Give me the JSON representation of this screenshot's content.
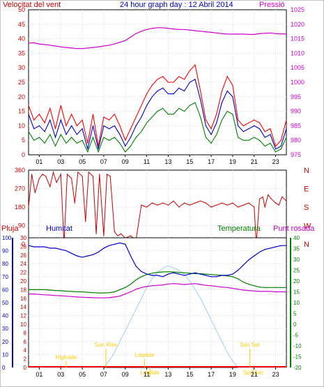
{
  "header": {
    "title": "24 hour graph day : 12 Abril 2014",
    "left_label": "Velocitat del vent",
    "right_label": "Pressió"
  },
  "colors": {
    "wind_gust": "#ff0000",
    "wind_avg": "#0000cc",
    "wind_low": "#008000",
    "pressure": "#cc00cc",
    "direction": "#cc0000",
    "humidity": "#0000cc",
    "temperature": "#008000",
    "dewpoint": "#cc00cc",
    "solar": "#99ccff",
    "rain": "#ff0000",
    "events": "#ffcc00"
  },
  "chart_data": [
    {
      "type": "line",
      "title": "24 hour graph day : 12 Abril 2014",
      "ylabel": "Velocitat del vent",
      "y2label": "Pressió",
      "xlim": [
        0,
        24
      ],
      "ylim": [
        0,
        50
      ],
      "y2lim": [
        975,
        1025
      ],
      "x_ticks": [
        "01",
        "03",
        "05",
        "07",
        "09",
        "11",
        "13",
        "15",
        "17",
        "19",
        "21",
        "23"
      ],
      "y_ticks": [
        0,
        5,
        10,
        15,
        20,
        25,
        30,
        35,
        40,
        45,
        50
      ],
      "y2_ticks": [
        975,
        980,
        985,
        990,
        995,
        1000,
        1005,
        1010,
        1015,
        1020,
        1025
      ],
      "grid": true,
      "x": [
        0,
        0.5,
        1,
        1.5,
        2,
        2.5,
        3,
        3.5,
        4,
        4.5,
        5,
        5.5,
        6,
        6.5,
        7,
        7.5,
        8,
        8.5,
        9,
        9.5,
        10,
        10.5,
        11,
        11.5,
        12,
        12.5,
        13,
        13.5,
        14,
        14.5,
        15,
        15.5,
        16,
        16.5,
        17,
        17.5,
        18,
        18.5,
        19,
        19.5,
        20,
        20.5,
        21,
        21.5,
        22,
        22.5,
        23,
        23.5,
        24
      ],
      "series": [
        {
          "key": "gust",
          "values": [
            17,
            12,
            14,
            11,
            16,
            9,
            17,
            10,
            14,
            10,
            12,
            4,
            14,
            3,
            13,
            12,
            14,
            10,
            5,
            9,
            13,
            17,
            21,
            24,
            26,
            27,
            25,
            25,
            27,
            26,
            29,
            31,
            22,
            12,
            9,
            14,
            22,
            27,
            24,
            12,
            10,
            11,
            12,
            11,
            8,
            9,
            3,
            5,
            12
          ]
        },
        {
          "key": "avg",
          "values": [
            14,
            9,
            10,
            8,
            12,
            6,
            12,
            7,
            10,
            7,
            9,
            2,
            10,
            2,
            10,
            9,
            10,
            7,
            3,
            6,
            10,
            13,
            17,
            20,
            22,
            23,
            21,
            21,
            23,
            22,
            25,
            26,
            19,
            10,
            7,
            11,
            18,
            22,
            20,
            10,
            8,
            9,
            10,
            9,
            6,
            7,
            2,
            3,
            9
          ]
        },
        {
          "key": "low",
          "values": [
            8,
            5,
            6,
            4,
            7,
            3,
            7,
            4,
            6,
            4,
            5,
            1,
            6,
            1,
            6,
            5,
            6,
            4,
            1,
            3,
            6,
            8,
            11,
            13,
            15,
            16,
            14,
            14,
            16,
            15,
            17,
            18,
            13,
            6,
            4,
            7,
            12,
            15,
            14,
            6,
            5,
            5,
            6,
            5,
            3,
            4,
            1,
            2,
            6
          ]
        },
        {
          "key": "pressure",
          "values": [
            1013.5,
            1013.6,
            1013.2,
            1013.0,
            1012.8,
            1012.5,
            1012.2,
            1012.0,
            1011.8,
            1011.6,
            1011.6,
            1011.8,
            1012.0,
            1012.2,
            1012.5,
            1012.8,
            1013.2,
            1013.8,
            1014.4,
            1015.6,
            1016.8,
            1017.6,
            1018.2,
            1018.6,
            1018.8,
            1018.8,
            1018.6,
            1018.4,
            1018.2,
            1018.2,
            1018.0,
            1017.8,
            1017.6,
            1017.4,
            1017.2,
            1017.0,
            1016.8,
            1016.6,
            1016.6,
            1016.6,
            1016.6,
            1016.5,
            1016.5,
            1016.8,
            1016.9,
            1017.0,
            1016.8,
            1016.7,
            1016.6
          ]
        }
      ]
    },
    {
      "type": "line",
      "ylim": [
        0,
        360
      ],
      "y_ticks": [
        0,
        90,
        180,
        270,
        360
      ],
      "y_tick_labels": [
        "0",
        "90",
        "180",
        "270",
        "360"
      ],
      "right_labels": [
        "N",
        "W",
        "S",
        "E",
        "N"
      ],
      "xlim": [
        0,
        24
      ],
      "x_ticks": [
        "01",
        "03",
        "05",
        "07",
        "09",
        "11",
        "13",
        "15",
        "17",
        "19",
        "21",
        "23"
      ],
      "x": [
        0,
        0.3,
        0.6,
        1,
        1.3,
        1.6,
        2,
        2.3,
        2.6,
        3,
        3.3,
        3.6,
        4,
        4.3,
        4.6,
        5,
        5.3,
        5.6,
        6,
        6.3,
        6.6,
        7,
        7.3,
        7.6,
        8,
        8.3,
        8.6,
        9,
        9.5,
        10,
        10.5,
        11,
        11.5,
        12,
        12.5,
        13,
        13.5,
        14,
        14.5,
        15,
        15.5,
        16,
        16.5,
        17,
        17.5,
        18,
        18.5,
        19,
        19.5,
        20,
        20.5,
        21,
        21.2,
        21.5,
        21.8,
        22,
        22.3,
        22.6,
        23,
        23.3,
        23.6,
        24
      ],
      "series": [
        {
          "key": "direction",
          "values": [
            180,
            340,
            250,
            320,
            340,
            330,
            280,
            350,
            300,
            340,
            0,
            340,
            320,
            200,
            350,
            330,
            110,
            350,
            330,
            50,
            340,
            40,
            340,
            330,
            60,
            40,
            50,
            30,
            40,
            20,
            190,
            180,
            200,
            190,
            200,
            190,
            210,
            180,
            200,
            190,
            200,
            210,
            200,
            180,
            190,
            200,
            190,
            200,
            180,
            190,
            200,
            180,
            0,
            220,
            230,
            180,
            240,
            220,
            200,
            190,
            230,
            210
          ]
        }
      ]
    },
    {
      "type": "line",
      "ylabel": "Humitat",
      "y_left_outer_label": "Pluja",
      "y2label": "Temperatura",
      "y2_outer_label": "Punt rosada",
      "xlim": [
        0,
        24
      ],
      "x_ticks": [
        "01",
        "03",
        "05",
        "07",
        "09",
        "11",
        "13",
        "15",
        "17",
        "19",
        "21",
        "23"
      ],
      "humidity_ticks": [
        0,
        10,
        20,
        30,
        40,
        50,
        60,
        70,
        80,
        90,
        100
      ],
      "rain_ticks": [
        0,
        2,
        4,
        6,
        8,
        10,
        12,
        14,
        16,
        18,
        20,
        22,
        24,
        26,
        28,
        30
      ],
      "temp_ticks": [
        -20,
        -15,
        -10,
        -5,
        0,
        5,
        10,
        15,
        20,
        25,
        30,
        35,
        40
      ],
      "grid": true,
      "x": [
        0,
        0.5,
        1,
        1.5,
        2,
        2.5,
        3,
        3.5,
        4,
        4.5,
        5,
        5.5,
        6,
        6.5,
        7,
        7.5,
        8,
        8.5,
        9,
        9.5,
        10,
        10.5,
        11,
        11.5,
        12,
        12.5,
        13,
        13.5,
        14,
        14.5,
        15,
        15.5,
        16,
        16.5,
        17,
        17.5,
        18,
        18.5,
        19,
        19.5,
        20,
        20.5,
        21,
        21.5,
        22,
        22.5,
        23,
        23.5,
        24
      ],
      "series": [
        {
          "key": "humidity",
          "values": [
            94,
            93,
            93,
            93,
            92,
            92,
            91,
            90,
            88,
            86,
            85,
            86,
            87,
            89,
            92,
            94,
            95,
            96,
            95,
            86,
            78,
            74,
            72,
            71,
            71,
            70,
            72,
            73,
            72,
            71,
            72,
            73,
            72,
            71,
            70,
            70,
            71,
            71,
            72,
            75,
            79,
            83,
            86,
            89,
            91,
            92,
            93,
            94,
            94
          ]
        },
        {
          "key": "temperature",
          "values": [
            16,
            16,
            16,
            16,
            15.8,
            15.6,
            15.5,
            15.3,
            15.2,
            15,
            15,
            14.8,
            14.6,
            14.5,
            14.5,
            14.6,
            15,
            16,
            17,
            18.5,
            20.5,
            22,
            23,
            23.6,
            24,
            24.2,
            24.3,
            24.2,
            24,
            23.8,
            23.6,
            23.4,
            23.4,
            23.2,
            23,
            22.8,
            22.6,
            22.4,
            22,
            21,
            19.5,
            18.5,
            17.8,
            17.2,
            17,
            17,
            17,
            17,
            17
          ]
        },
        {
          "key": "dewpoint",
          "values": [
            14,
            14,
            13.8,
            13.6,
            13.5,
            13.3,
            13.2,
            13,
            12.8,
            12.6,
            12.5,
            12.4,
            12.3,
            12.2,
            12.2,
            12.3,
            12.6,
            13,
            14,
            15,
            16.2,
            17,
            17.5,
            17.8,
            18,
            18.2,
            18.6,
            18.8,
            18.6,
            18.4,
            18.6,
            18.8,
            18.4,
            18,
            17.8,
            17.5,
            17.2,
            17,
            16.6,
            16.2,
            15.8,
            15.6,
            15.4,
            15.2,
            15.2,
            15.2,
            15,
            15,
            15
          ]
        },
        {
          "key": "solar_temp_scale",
          "values": [
            -20,
            -20,
            -20,
            -20,
            -20,
            -20,
            -20,
            -20,
            -20,
            -20,
            -20,
            -20,
            -20,
            -20,
            -20,
            -17,
            -13,
            -8,
            -3,
            2,
            7,
            12,
            17,
            21,
            24,
            26,
            27,
            26,
            25,
            23,
            20,
            16,
            12,
            7,
            2,
            -3,
            -8,
            -13,
            -17,
            -20,
            -20,
            -20,
            -20,
            -20,
            -20,
            -20,
            -20,
            -20,
            -20
          ]
        }
      ],
      "events": [
        {
          "label": "Highside",
          "x": 3.5,
          "line_top": 518
        },
        {
          "label": "Sun Rise",
          "x": 7.2,
          "line_top": 500
        },
        {
          "label": "Lowtide",
          "x": 10.8,
          "line_top": 515
        },
        {
          "label": "Lowtide",
          "x": 11.3,
          "line_top": 540
        },
        {
          "label": "Sun Set",
          "x": 20.6,
          "line_top": 500
        },
        {
          "label": "Sun Set",
          "x": 20.9,
          "line_top": 540
        }
      ]
    }
  ]
}
